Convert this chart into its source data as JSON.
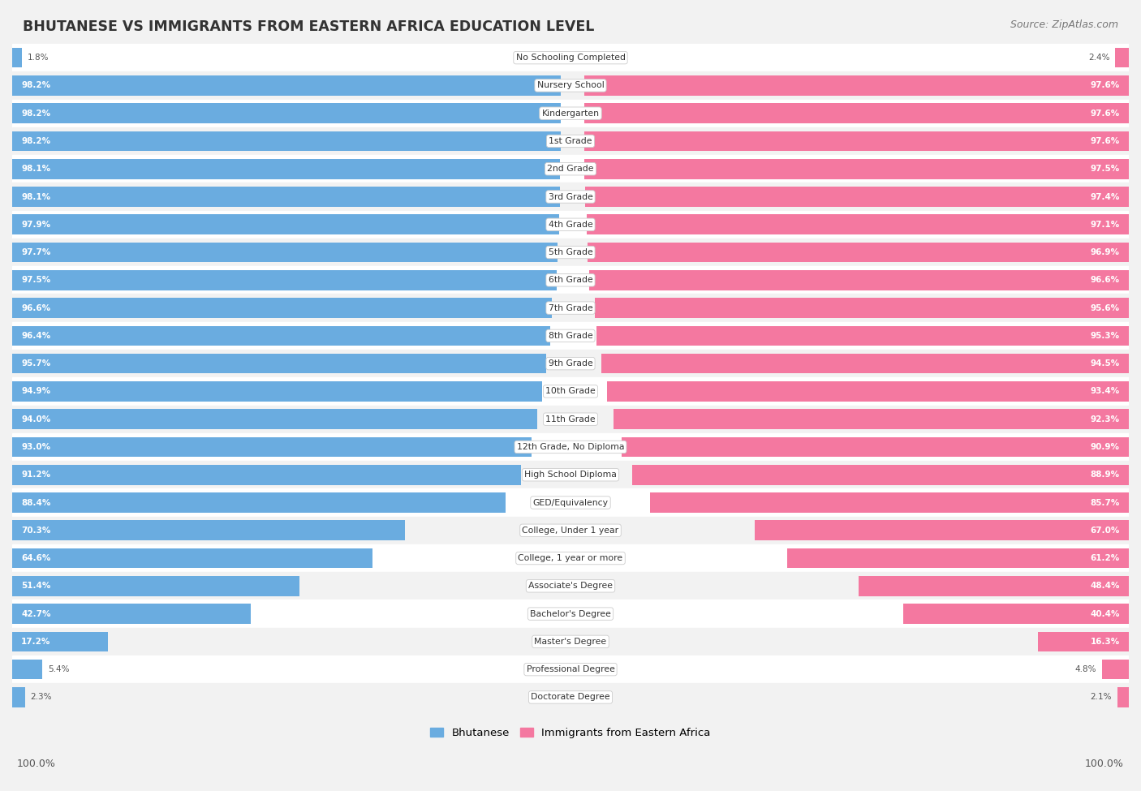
{
  "title": "BHUTANESE VS IMMIGRANTS FROM EASTERN AFRICA EDUCATION LEVEL",
  "source": "Source: ZipAtlas.com",
  "categories": [
    "No Schooling Completed",
    "Nursery School",
    "Kindergarten",
    "1st Grade",
    "2nd Grade",
    "3rd Grade",
    "4th Grade",
    "5th Grade",
    "6th Grade",
    "7th Grade",
    "8th Grade",
    "9th Grade",
    "10th Grade",
    "11th Grade",
    "12th Grade, No Diploma",
    "High School Diploma",
    "GED/Equivalency",
    "College, Under 1 year",
    "College, 1 year or more",
    "Associate's Degree",
    "Bachelor's Degree",
    "Master's Degree",
    "Professional Degree",
    "Doctorate Degree"
  ],
  "bhutanese": [
    1.8,
    98.2,
    98.2,
    98.2,
    98.1,
    98.1,
    97.9,
    97.7,
    97.5,
    96.6,
    96.4,
    95.7,
    94.9,
    94.0,
    93.0,
    91.2,
    88.4,
    70.3,
    64.6,
    51.4,
    42.7,
    17.2,
    5.4,
    2.3
  ],
  "eastern_africa": [
    2.4,
    97.6,
    97.6,
    97.6,
    97.5,
    97.4,
    97.1,
    96.9,
    96.6,
    95.6,
    95.3,
    94.5,
    93.4,
    92.3,
    90.9,
    88.9,
    85.7,
    67.0,
    61.2,
    48.4,
    40.4,
    16.3,
    4.8,
    2.1
  ],
  "bhutanese_color": "#6aace0",
  "eastern_africa_color": "#f478a0",
  "row_color_even": "#f2f2f2",
  "row_color_odd": "#ffffff",
  "background_color": "#f2f2f2",
  "label_box_color": "#ffffff",
  "label_box_edge": "#cccccc",
  "legend_bhutanese": "Bhutanese",
  "legend_eastern_africa": "Immigrants from Eastern Africa",
  "value_color_inside": "#ffffff",
  "value_color_outside": "#555555"
}
